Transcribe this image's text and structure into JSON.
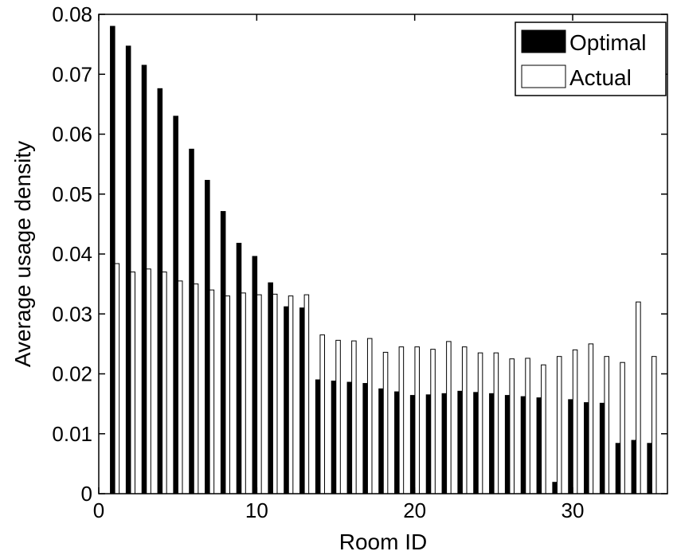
{
  "chart_data": {
    "type": "bar",
    "title": "",
    "xlabel": "Room ID",
    "ylabel": "Average usage density",
    "x": [
      1,
      2,
      3,
      4,
      5,
      6,
      7,
      8,
      9,
      10,
      11,
      12,
      13,
      14,
      15,
      16,
      17,
      18,
      19,
      20,
      21,
      22,
      23,
      24,
      25,
      26,
      27,
      28,
      29,
      30,
      31,
      32,
      33,
      34,
      35
    ],
    "xlim": [
      0,
      36
    ],
    "ylim": [
      0,
      0.08
    ],
    "xticks": [
      0,
      10,
      20,
      30
    ],
    "xtick_labels": [
      "0",
      "10",
      "20",
      "30"
    ],
    "yticks": [
      0,
      0.01,
      0.02,
      0.03,
      0.04,
      0.05,
      0.06,
      0.07,
      0.08
    ],
    "ytick_labels": [
      "0",
      "0.01",
      "0.02",
      "0.03",
      "0.04",
      "0.05",
      "0.06",
      "0.07",
      "0.08"
    ],
    "grid": false,
    "legend_position": "top-right",
    "series": [
      {
        "name": "Optimal",
        "color": "#000000",
        "values": [
          0.078,
          0.0747,
          0.0715,
          0.0676,
          0.063,
          0.0575,
          0.0523,
          0.0471,
          0.0418,
          0.0396,
          0.0352,
          0.0312,
          0.031,
          0.019,
          0.0188,
          0.0186,
          0.0184,
          0.0175,
          0.017,
          0.0164,
          0.0165,
          0.0167,
          0.0171,
          0.0169,
          0.0167,
          0.0164,
          0.0162,
          0.016,
          0.0019,
          0.0157,
          0.0152,
          0.0151,
          0.0084,
          0.0089,
          0.0084
        ]
      },
      {
        "name": "Actual",
        "color": "#ffffff",
        "values": [
          0.0384,
          0.037,
          0.0375,
          0.037,
          0.0355,
          0.035,
          0.034,
          0.033,
          0.0335,
          0.0332,
          0.0333,
          0.033,
          0.0332,
          0.0265,
          0.0256,
          0.0255,
          0.0259,
          0.0236,
          0.0245,
          0.0245,
          0.0241,
          0.0254,
          0.0245,
          0.0235,
          0.0235,
          0.0225,
          0.0226,
          0.0215,
          0.0229,
          0.024,
          0.025,
          0.0229,
          0.0219,
          0.032,
          0.0229
        ]
      }
    ]
  }
}
